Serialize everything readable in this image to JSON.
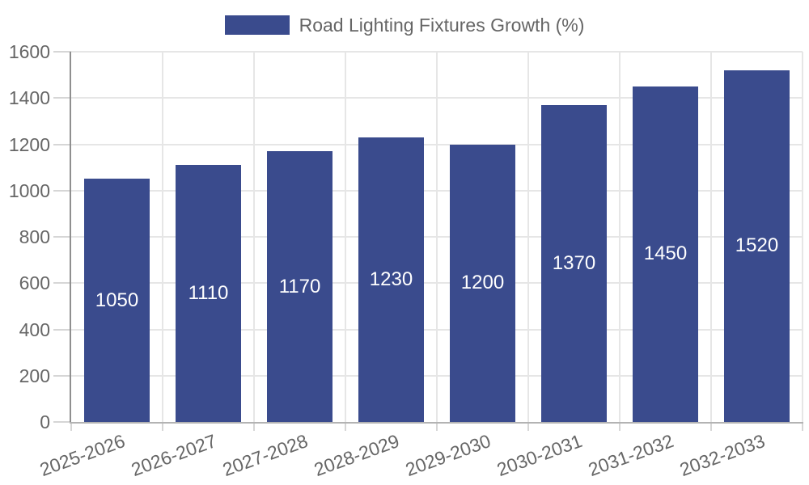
{
  "chart_data": {
    "type": "bar",
    "title": "",
    "legend": {
      "label": "Road Lighting Fixtures Growth (%)",
      "position": "top"
    },
    "categories": [
      "2025-2026",
      "2026-2027",
      "2027-2028",
      "2028-2029",
      "2029-2030",
      "2030-2031",
      "2031-2032",
      "2032-2033"
    ],
    "series": [
      {
        "name": "Road Lighting Fixtures Growth (%)",
        "values": [
          1050,
          1110,
          1170,
          1230,
          1200,
          1370,
          1450,
          1520
        ]
      }
    ],
    "value_labels": [
      "1050",
      "1110",
      "1170",
      "1230",
      "1200",
      "1370",
      "1450",
      "1520"
    ],
    "xlabel": "",
    "ylabel": "",
    "ylim": [
      0,
      1600
    ],
    "y_ticks": [
      "0",
      "200",
      "400",
      "600",
      "800",
      "1000",
      "1200",
      "1400",
      "1600"
    ],
    "grid": true,
    "bar_color": "#3A4B8D",
    "value_label_color": "#FFFFFF"
  },
  "colors": {
    "background": "#FFFFFF",
    "grid_line": "#E6E6E6",
    "axis_line_left": "#8F8F8F",
    "axis_line_bottom": "#B3B3B3",
    "tick_mark": "#D6D6D6",
    "tick_text": "#666666",
    "legend_text": "#666666"
  }
}
